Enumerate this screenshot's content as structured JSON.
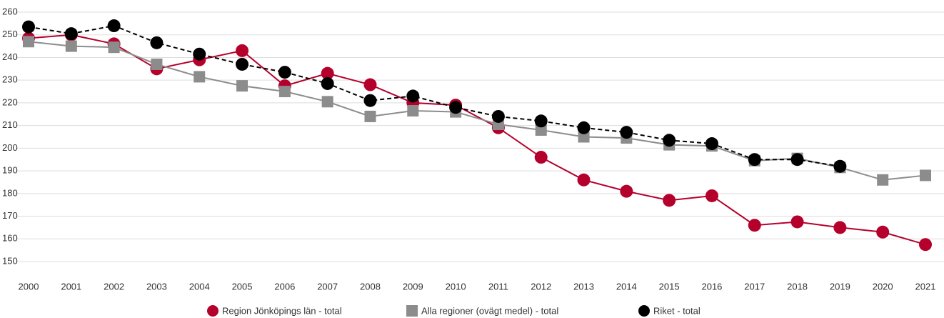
{
  "chart_data": {
    "type": "line",
    "x": [
      "2000",
      "2001",
      "2002",
      "2003",
      "2004",
      "2005",
      "2006",
      "2007",
      "2008",
      "2009",
      "2010",
      "2011",
      "2012",
      "2013",
      "2014",
      "2015",
      "2016",
      "2017",
      "2018",
      "2019",
      "2020",
      "2021"
    ],
    "series": [
      {
        "name": "Region Jönköpings län - total",
        "color": "#b5002c",
        "marker": "circle",
        "dash": false,
        "values": [
          248.5,
          250,
          246,
          235,
          239,
          243,
          227.5,
          233,
          228,
          220,
          219,
          209,
          196,
          186,
          181,
          177,
          179,
          166,
          167.5,
          165,
          163,
          157.5
        ]
      },
      {
        "name": "Alla regioner (ovägt medel) - total",
        "color": "#8c8c8c",
        "marker": "square",
        "dash": false,
        "values": [
          247,
          245,
          244.5,
          237,
          231.5,
          227.5,
          225,
          220.5,
          214,
          216.5,
          216,
          210.5,
          208,
          205,
          204.5,
          201.5,
          201,
          194.5,
          195.5,
          191.5,
          186,
          188
        ]
      },
      {
        "name": "Riket - total",
        "color": "#000000",
        "marker": "circle",
        "dash": true,
        "values": [
          253.5,
          250.5,
          254,
          246.5,
          241.5,
          237,
          233.5,
          228.5,
          221,
          223,
          218,
          214,
          212,
          209,
          207,
          203.5,
          202,
          195,
          195,
          192,
          null,
          null
        ]
      }
    ],
    "ylim": [
      150,
      260
    ],
    "yticks": [
      150,
      160,
      170,
      180,
      190,
      200,
      210,
      220,
      230,
      240,
      250,
      260
    ],
    "grid": true,
    "legend": "bottom"
  }
}
